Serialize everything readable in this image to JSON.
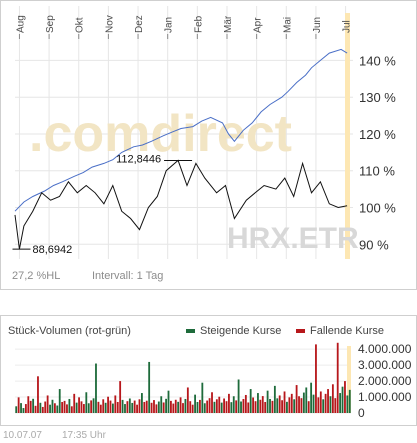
{
  "chart_data": [
    {
      "type": "line",
      "x_ticks": [
        "Aug",
        "Sep",
        "Okt",
        "Nov",
        "Dez",
        "Jan",
        "Feb",
        "Mär",
        "Apr",
        "Mai",
        "Jun",
        "Jul"
      ],
      "y_ticks": [
        "90 %",
        "100 %",
        "110 %",
        "120 %",
        "130 %",
        "140 %"
      ],
      "ylim": [
        86,
        148
      ],
      "watermark": ".comdirect",
      "symbol": "HRX.ETR",
      "annotations": [
        {
          "label": "112,8446",
          "x": 5.5,
          "y": 112.8
        },
        {
          "label": "88,6942",
          "x": 0.05,
          "y": 88.7
        }
      ],
      "series": [
        {
          "color": "#4a6fc7",
          "x": [
            0,
            0.3,
            0.6,
            1,
            1.3,
            1.6,
            2,
            2.3,
            2.6,
            3,
            3.3,
            3.6,
            4,
            4.3,
            4.6,
            5,
            5.3,
            5.6,
            6,
            6.3,
            6.6,
            7,
            7.2,
            7.4,
            7.7,
            8,
            8.3,
            8.6,
            9,
            9.2,
            9.5,
            9.8,
            10,
            10.3,
            10.6,
            11,
            11.2
          ],
          "y": [
            99,
            101.5,
            103,
            104.5,
            106,
            107,
            108.5,
            109.5,
            111,
            112,
            113,
            115,
            116.5,
            117,
            118,
            119.5,
            120.5,
            121.5,
            122,
            123.5,
            124.5,
            123,
            120,
            118,
            121,
            123,
            126,
            128,
            130,
            131.5,
            134,
            136,
            138,
            140,
            142,
            143,
            142
          ]
        },
        {
          "color": "#111111",
          "x": [
            0,
            0.15,
            0.3,
            0.6,
            0.9,
            1.2,
            1.5,
            1.8,
            2.1,
            2.4,
            2.7,
            3,
            3.3,
            3.6,
            3.9,
            4.2,
            4.5,
            4.8,
            5.1,
            5.5,
            5.8,
            6.1,
            6.4,
            6.8,
            7.1,
            7.4,
            7.8,
            8.1,
            8.4,
            8.8,
            9.1,
            9.4,
            9.7,
            10,
            10.3,
            10.6,
            10.9,
            11.2
          ],
          "y": [
            98,
            88.7,
            95,
            99,
            104,
            102,
            103,
            107,
            104,
            106,
            104,
            101,
            106,
            99,
            97,
            94,
            100,
            103,
            110,
            112.8,
            106,
            112,
            108,
            104,
            106,
            97,
            102,
            104,
            106,
            105,
            108,
            103,
            112,
            104,
            107,
            101,
            100,
            100.5
          ]
        }
      ]
    },
    {
      "type": "bar",
      "title": "Stück-Volumen (rot-grün)",
      "legend": [
        {
          "name": "Steigende Kurse",
          "color": "#1e6b3b"
        },
        {
          "name": "Fallende Kurse",
          "color": "#b7171b"
        }
      ],
      "y_ticks": [
        "4.000.000",
        "3.000.000",
        "2.000.000",
        "1.000.000",
        "0"
      ],
      "ylim": [
        0,
        4700000
      ],
      "values": [
        420000,
        980000,
        620000,
        310000,
        560000,
        1050000,
        760000,
        890000,
        450000,
        2300000,
        640000,
        380000,
        720000,
        1100000,
        520000,
        830000,
        610000,
        470000,
        1500000,
        690000,
        760000,
        540000,
        880000,
        420000,
        1200000,
        650000,
        980000,
        730000,
        560000,
        1300000,
        610000,
        790000,
        920000,
        3100000,
        700000,
        520000,
        860000,
        640000,
        1020000,
        780000,
        590000,
        1100000,
        690000,
        2000000,
        820000,
        560000,
        740000,
        910000,
        630000,
        780000,
        520000,
        860000,
        1250000,
        690000,
        770000,
        3200000,
        640000,
        810000,
        540000,
        720000,
        1050000,
        660000,
        890000,
        1400000,
        760000,
        590000,
        830000,
        700000,
        980000,
        620000,
        880000,
        1600000,
        740000,
        520000,
        1150000,
        690000,
        820000,
        1900000,
        610000,
        780000,
        930000,
        1300000,
        700000,
        860000,
        1020000,
        650000,
        910000,
        740000,
        1200000,
        680000,
        1050000,
        790000,
        2100000,
        720000,
        880000,
        1130000,
        660000,
        1500000,
        970000,
        740000,
        1250000,
        830000,
        1060000,
        690000,
        1400000,
        880000,
        760000,
        1700000,
        920000,
        1100000,
        800000,
        1350000,
        700000,
        980000,
        1200000,
        860000,
        1750000,
        1050000,
        930000,
        1280000,
        1600000,
        740000,
        1900000,
        1150000,
        4300000,
        980000,
        1350000,
        860000,
        1200000,
        1500000,
        1050000,
        1800000,
        930000,
        4400000,
        1250000,
        1650000,
        2000000,
        1100000,
        1450000
      ]
    }
  ],
  "status": {
    "hl": "27,2 %HL",
    "interval": "Intervall: 1 Tag"
  },
  "footer": {
    "date": "10.07.07",
    "time": "17:35 Uhr"
  }
}
